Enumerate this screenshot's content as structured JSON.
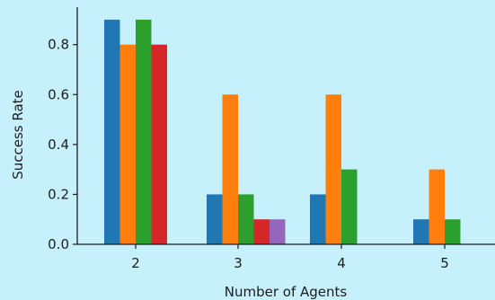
{
  "chart_data": {
    "type": "bar",
    "title": "",
    "xlabel": "Number of Agents",
    "ylabel": "Success Rate",
    "categories": [
      "2",
      "3",
      "4",
      "5"
    ],
    "ylim": [
      0,
      0.95
    ],
    "yticks": [
      "0.0",
      "0.2",
      "0.4",
      "0.6",
      "0.8"
    ],
    "grid": false,
    "legend": "none",
    "series": [
      {
        "color": "#1f77b4",
        "values": [
          0.9,
          0.2,
          0.2,
          0.1
        ]
      },
      {
        "color": "#ff7f0e",
        "values": [
          0.8,
          0.6,
          0.6,
          0.3
        ]
      },
      {
        "color": "#2ca02c",
        "values": [
          0.9,
          0.2,
          0.3,
          0.1
        ]
      },
      {
        "color": "#d62728",
        "values": [
          0.8,
          0.1,
          0.0,
          0.0
        ]
      },
      {
        "color": "#9467bd",
        "values": [
          0.0,
          0.1,
          0.0,
          0.0
        ]
      }
    ]
  }
}
